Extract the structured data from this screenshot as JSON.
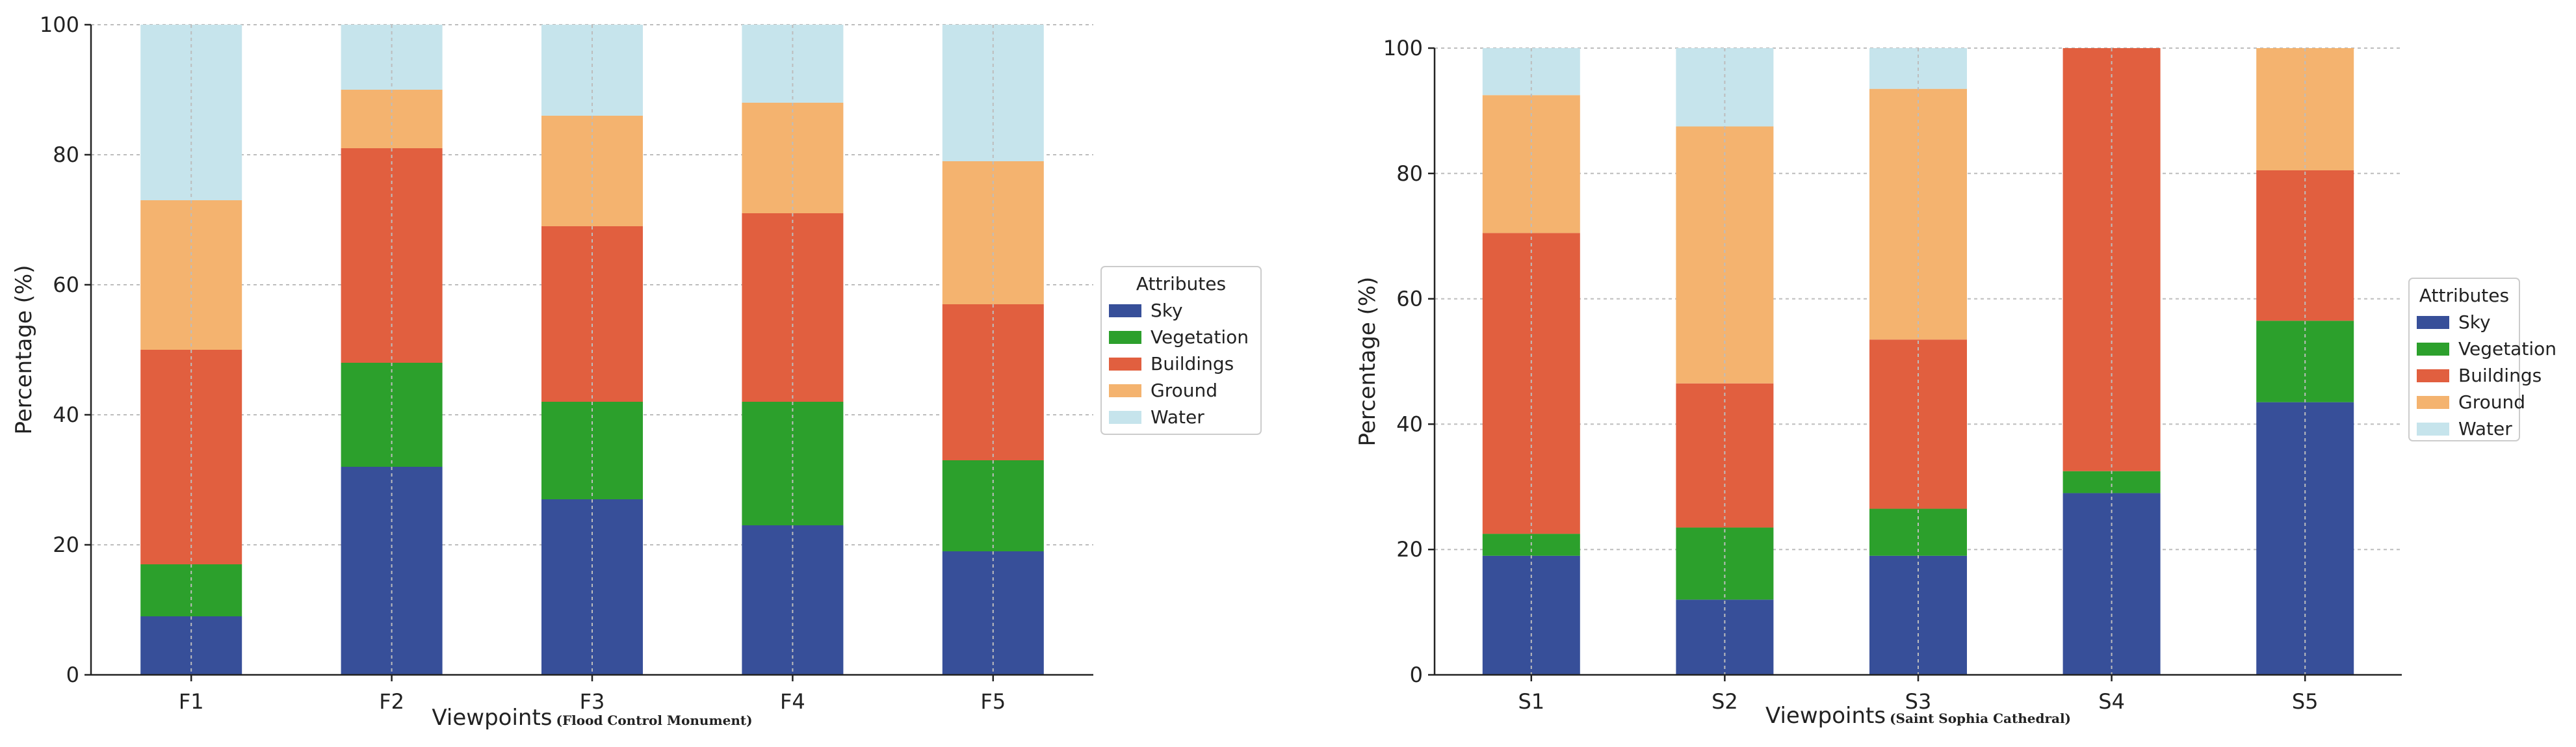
{
  "colors": {
    "Sky": "#374f99",
    "Vegetation": "#2ca02c",
    "Buildings": "#e15f3f",
    "Ground": "#f4b36f",
    "Water": "#c6e4ec"
  },
  "chart_data": [
    {
      "type": "bar",
      "stacked": true,
      "categories": [
        "F1",
        "F2",
        "F3",
        "F4",
        "F5"
      ],
      "series": [
        {
          "name": "Sky",
          "values": [
            9,
            32,
            27,
            23,
            19
          ]
        },
        {
          "name": "Vegetation",
          "values": [
            8,
            16,
            15,
            19,
            14
          ]
        },
        {
          "name": "Buildings",
          "values": [
            33,
            33,
            27,
            29,
            24
          ]
        },
        {
          "name": "Ground",
          "values": [
            23,
            9,
            17,
            17,
            22
          ]
        },
        {
          "name": "Water",
          "values": [
            27,
            10,
            14,
            12,
            21
          ]
        }
      ],
      "title": "",
      "xlabel": "Viewpoints",
      "xlabel_sub": "(Flood Control Monument)",
      "ylabel": "Percentage (%)",
      "ylim": [
        0,
        100
      ],
      "yticks": [
        0,
        20,
        40,
        60,
        80,
        100
      ],
      "legend_title": "Attributes",
      "legend_position": "right"
    },
    {
      "type": "bar",
      "stacked": true,
      "categories": [
        "S1",
        "S2",
        "S3",
        "S4",
        "S5"
      ],
      "series": [
        {
          "name": "Sky",
          "values": [
            19,
            12,
            19,
            29,
            43.5
          ]
        },
        {
          "name": "Vegetation",
          "values": [
            3.5,
            11.5,
            7.5,
            3.5,
            13
          ]
        },
        {
          "name": "Buildings",
          "values": [
            48,
            23,
            27,
            67.5,
            24
          ]
        },
        {
          "name": "Ground",
          "values": [
            22,
            41,
            40,
            0,
            19.5
          ]
        },
        {
          "name": "Water",
          "values": [
            7.5,
            12.5,
            6.5,
            0,
            0
          ]
        }
      ],
      "title": "",
      "xlabel": "Viewpoints",
      "xlabel_sub": "(Saint Sophia Cathedral)",
      "ylabel": "Percentage (%)",
      "ylim": [
        0,
        100
      ],
      "yticks": [
        0,
        20,
        40,
        60,
        80,
        100
      ],
      "legend_title": "Attributes",
      "legend_position": "right"
    }
  ]
}
